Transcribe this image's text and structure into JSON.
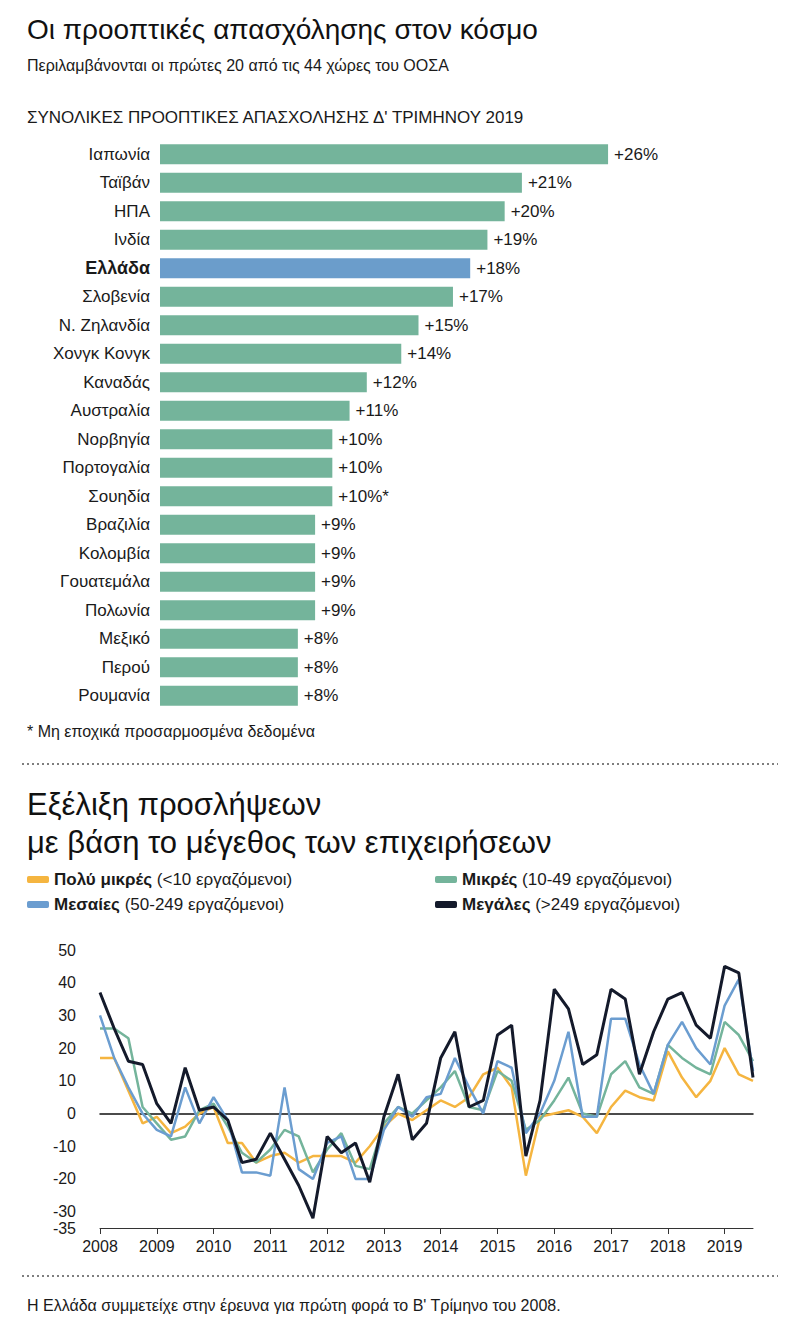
{
  "chart_data": [
    {
      "type": "bar",
      "title": "Οι προοπτικές απασχόλησης στον κόσμο",
      "subtitle": "Περιλαμβάνονται οι πρώτες 20 από τις 44 χώρες του ΟΟΣΑ",
      "heading": "ΣΥΝΟΛΙΚΕΣ ΠΡΟΟΠΤΙΚΕΣ ΑΠΑΣΧΟΛΗΣΗΣ Δ' ΤΡΙΜΗΝΟΥ 2019",
      "note": "* Μη εποχικά προσαρμοσμένα δεδομένα",
      "orientation": "horizontal",
      "categories": [
        "Ιαπωνία",
        "Ταϊβάν",
        "ΗΠΑ",
        "Ινδία",
        "Ελλάδα",
        "Σλοβενία",
        "Ν. Ζηλανδία",
        "Χονγκ Κονγκ",
        "Καναδάς",
        "Αυστραλία",
        "Νορβηγία",
        "Πορτογαλία",
        "Σουηδία",
        "Βραζιλία",
        "Κολομβία",
        "Γουατεμάλα",
        "Πολωνία",
        "Μεξικό",
        "Περού",
        "Ρουμανία"
      ],
      "values": [
        26,
        21,
        20,
        19,
        18,
        17,
        15,
        14,
        12,
        11,
        10,
        10,
        10,
        9,
        9,
        9,
        9,
        8,
        8,
        8
      ],
      "value_labels": [
        "+26%",
        "+21%",
        "+20%",
        "+19%",
        "+18%",
        "+17%",
        "+15%",
        "+14%",
        "+12%",
        "+11%",
        "+10%",
        "+10%",
        "+10%*",
        "+9%",
        "+9%",
        "+9%",
        "+9%",
        "+8%",
        "+8%",
        "+8%"
      ],
      "colors": [
        "#74b49b",
        "#74b49b",
        "#74b49b",
        "#74b49b",
        "#6b9dcb",
        "#74b49b",
        "#74b49b",
        "#74b49b",
        "#74b49b",
        "#74b49b",
        "#74b49b",
        "#74b49b",
        "#74b49b",
        "#74b49b",
        "#74b49b",
        "#74b49b",
        "#74b49b",
        "#74b49b",
        "#74b49b",
        "#74b49b"
      ],
      "xlim": [
        0,
        30
      ],
      "data_labels": true,
      "tick_labels": "y",
      "grid": false
    },
    {
      "type": "line",
      "title": "Εξέλιξη προσλήψεων\nμε βάση το μέγεθος των επιχειρήσεων",
      "note": "Η Ελλάδα συμμετείχε στην έρευνα για πρώτη φορά το Β' Τρίμηνο του 2008.",
      "legend": "top",
      "categories": [
        "2008",
        null,
        null,
        null,
        "2009",
        null,
        null,
        null,
        "2010",
        null,
        null,
        null,
        "2011",
        null,
        null,
        null,
        "2012",
        null,
        null,
        null,
        "2013",
        null,
        null,
        null,
        "2014",
        null,
        null,
        null,
        "2015",
        null,
        null,
        null,
        "2016",
        null,
        null,
        null,
        "2017",
        null,
        null,
        null,
        "2018",
        null,
        null,
        null,
        "2019",
        null,
        null
      ],
      "series": [
        {
          "name": "Πολύ μικρές (<10 εργαζόμενοι)",
          "color": "#f5b540",
          "values": [
            17,
            17,
            7,
            -3,
            -1,
            -6,
            -4,
            0,
            2,
            -9,
            -9,
            -15,
            -13,
            -12,
            -15,
            -13,
            -13,
            -13,
            -15,
            -10,
            -4,
            0,
            -2,
            1,
            4,
            2,
            5,
            12,
            14,
            8,
            -19,
            -1,
            0,
            1,
            -1,
            -6,
            2,
            7,
            5,
            4,
            19,
            11,
            5,
            10,
            20,
            12,
            10
          ]
        },
        {
          "name": "Μικρές (10-49 εργαζόμενοι)",
          "color": "#74b49b",
          "values": [
            26,
            26,
            23,
            2,
            -3,
            -8,
            -7,
            1,
            3,
            -4,
            -12,
            -15,
            -11,
            -5,
            -7,
            -18,
            -11,
            -6,
            -16,
            -17,
            -3,
            2,
            0,
            4,
            8,
            13,
            2,
            1,
            13,
            10,
            -5,
            -2,
            4,
            11,
            0,
            -1,
            12,
            16,
            8,
            6,
            21,
            17,
            14,
            12,
            28,
            24,
            16
          ]
        },
        {
          "name": "Μεσαίες (50-249 εργαζόμενοι)",
          "color": "#6b9dd0",
          "values": [
            30,
            17,
            8,
            0,
            -5,
            -7,
            8,
            -3,
            5,
            -2,
            -18,
            -18,
            -19,
            8,
            -17,
            -20,
            -9,
            -7,
            -20,
            -20,
            -5,
            2,
            -1,
            5,
            6,
            17,
            8,
            0,
            16,
            14,
            -6,
            0,
            10,
            25,
            -1,
            -1,
            29,
            29,
            15,
            6,
            21,
            28,
            20,
            15,
            33,
            41,
            13
          ]
        },
        {
          "name": "Μεγάλες (>249 εργαζόμενοι)",
          "color": "#141a2b",
          "values": [
            37,
            26,
            16,
            15,
            3,
            -3,
            14,
            1,
            2,
            -2,
            -15,
            -14,
            -6,
            -14,
            -22,
            -32,
            -7,
            -12,
            -9,
            -21,
            -1,
            12,
            -8,
            -3,
            17,
            25,
            2,
            4,
            24,
            27,
            -13,
            4,
            38,
            32,
            15,
            18,
            38,
            35,
            12,
            25,
            35,
            37,
            27,
            23,
            45,
            43,
            11
          ]
        }
      ],
      "ylim": [
        -35,
        50
      ],
      "yticks": [
        -35,
        -30,
        -20,
        -10,
        0,
        10,
        20,
        30,
        40,
        50
      ],
      "grid": false
    }
  ]
}
